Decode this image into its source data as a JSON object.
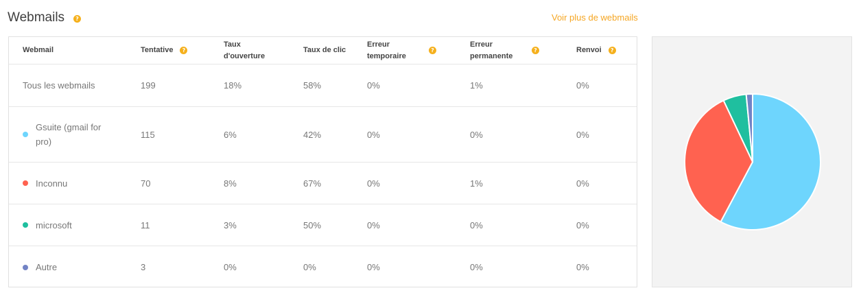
{
  "section": {
    "title": "Webmails",
    "help_icon": "question-icon",
    "more_link": "Voir plus de webmails"
  },
  "table": {
    "headers": [
      {
        "label": "Webmail",
        "help": false
      },
      {
        "label": "Tentative",
        "help": true
      },
      {
        "label": "Taux d'ouverture",
        "help": false
      },
      {
        "label": "Taux de clic",
        "help": false
      },
      {
        "label": "Erreur temporaire",
        "help": true
      },
      {
        "label": "Erreur permanente",
        "help": true
      },
      {
        "label": "Renvoi",
        "help": true
      }
    ],
    "rows": [
      {
        "name": "Tous les webmails",
        "color": "",
        "tentative": "199",
        "ouverture": "18%",
        "clic": "58%",
        "temp": "0%",
        "perm": "1%",
        "renvoi": "0%"
      },
      {
        "name": "Gsuite (gmail for pro)",
        "color": "#6ed5fd",
        "tentative": "115",
        "ouverture": "6%",
        "clic": "42%",
        "temp": "0%",
        "perm": "0%",
        "renvoi": "0%"
      },
      {
        "name": "Inconnu",
        "color": "#ff6250",
        "tentative": "70",
        "ouverture": "8%",
        "clic": "67%",
        "temp": "0%",
        "perm": "1%",
        "renvoi": "0%"
      },
      {
        "name": "microsoft",
        "color": "#1fbf9f",
        "tentative": "11",
        "ouverture": "3%",
        "clic": "50%",
        "temp": "0%",
        "perm": "0%",
        "renvoi": "0%"
      },
      {
        "name": "Autre",
        "color": "#7283c5",
        "tentative": "3",
        "ouverture": "0%",
        "clic": "0%",
        "temp": "0%",
        "perm": "0%",
        "renvoi": "0%"
      }
    ]
  },
  "chart_data": {
    "type": "pie",
    "categories": [
      "Gsuite (gmail for pro)",
      "Inconnu",
      "microsoft",
      "Autre"
    ],
    "values": [
      115,
      70,
      11,
      3
    ],
    "colors": [
      "#6ed5fd",
      "#ff6250",
      "#1fbf9f",
      "#7283c5"
    ]
  }
}
